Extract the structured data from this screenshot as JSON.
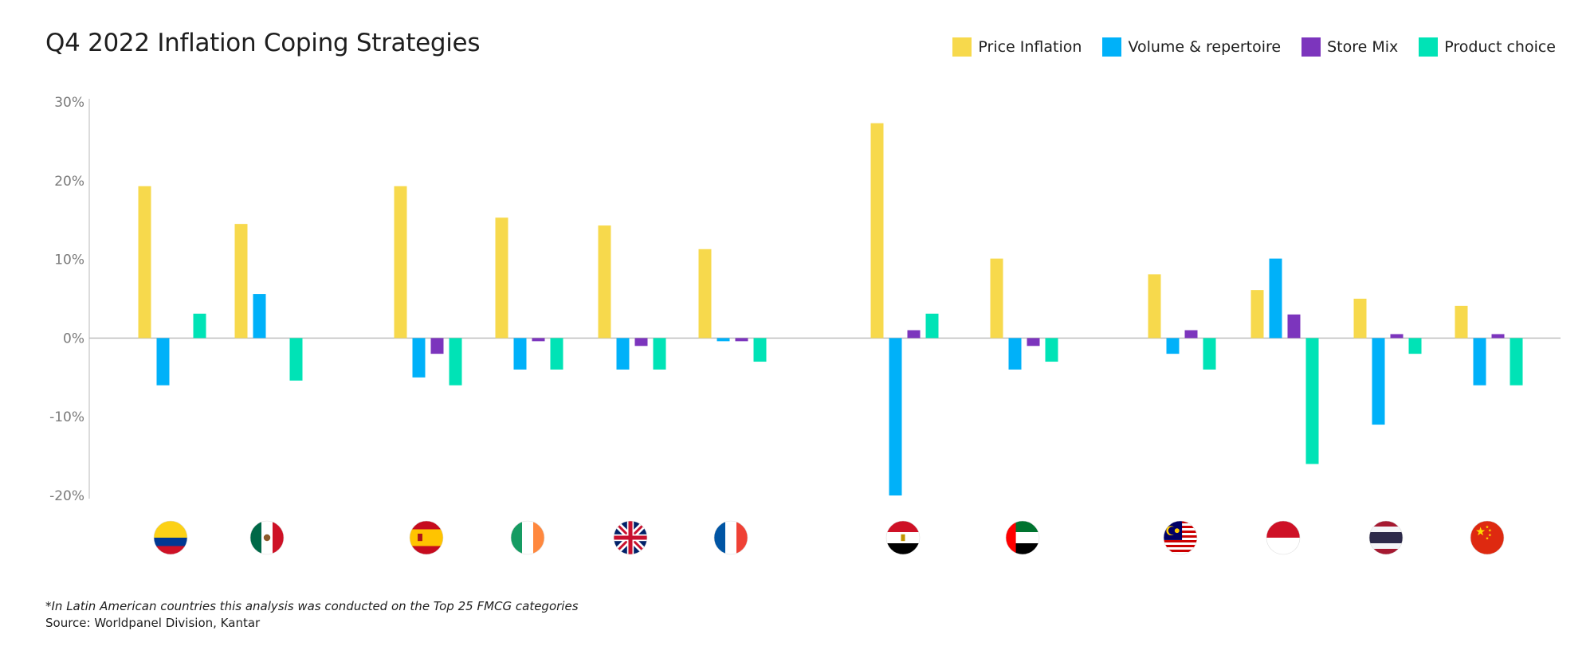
{
  "chart_data": {
    "type": "bar",
    "title": "Q4 2022 Inflation Coping Strategies",
    "ylim": [
      -20,
      30
    ],
    "yticks": [
      30,
      20,
      10,
      0,
      -10,
      -20
    ],
    "ytick_labels": [
      "30%",
      "20%",
      "10%",
      "0%",
      "-10%",
      "-20%"
    ],
    "legend_position": "top-right",
    "grid": false,
    "categories": [
      "Colombia",
      "Mexico",
      "Spain",
      "Ireland",
      "United Kingdom",
      "France",
      "Egypt",
      "United Arab Emirates",
      "Malaysia",
      "Indonesia",
      "Thailand",
      "China"
    ],
    "series": [
      {
        "name": "Price Inflation",
        "color": "#f7d94c",
        "values": [
          19.3,
          14.5,
          19.3,
          15.3,
          14.3,
          11.3,
          27.3,
          10.1,
          8.1,
          6.1,
          5.0,
          4.1
        ]
      },
      {
        "name": "Volume & repertoire",
        "color": "#00b1f9",
        "values": [
          -6.0,
          5.6,
          -5.0,
          -4.0,
          -4.0,
          -0.4,
          -20.0,
          -4.0,
          -2.0,
          10.1,
          -11.0,
          -6.0
        ]
      },
      {
        "name": "Store Mix",
        "color": "#7c35bd",
        "values": [
          0,
          0,
          -2.0,
          -0.4,
          -1.0,
          -0.4,
          1.0,
          -1.0,
          1.0,
          3.0,
          0.5,
          0.5
        ]
      },
      {
        "name": "Product choice",
        "color": "#00e3b6",
        "values": [
          3.1,
          -5.4,
          -6.0,
          -4.0,
          -4.0,
          -3.0,
          3.1,
          -3.0,
          -4.0,
          -16.0,
          -2.0,
          -6.0
        ]
      }
    ]
  },
  "flags": [
    {
      "icon": "colombia-flag-icon"
    },
    {
      "icon": "mexico-flag-icon"
    },
    {
      "icon": "spain-flag-icon"
    },
    {
      "icon": "ireland-flag-icon"
    },
    {
      "icon": "uk-flag-icon"
    },
    {
      "icon": "france-flag-icon"
    },
    {
      "icon": "egypt-flag-icon"
    },
    {
      "icon": "uae-flag-icon"
    },
    {
      "icon": "malaysia-flag-icon"
    },
    {
      "icon": "indonesia-flag-icon"
    },
    {
      "icon": "thailand-flag-icon"
    },
    {
      "icon": "china-flag-icon"
    }
  ],
  "footnote": "*In Latin American countries this analysis was conducted on the Top 25 FMCG categories",
  "source": "Source: Worldpanel Division, Kantar"
}
